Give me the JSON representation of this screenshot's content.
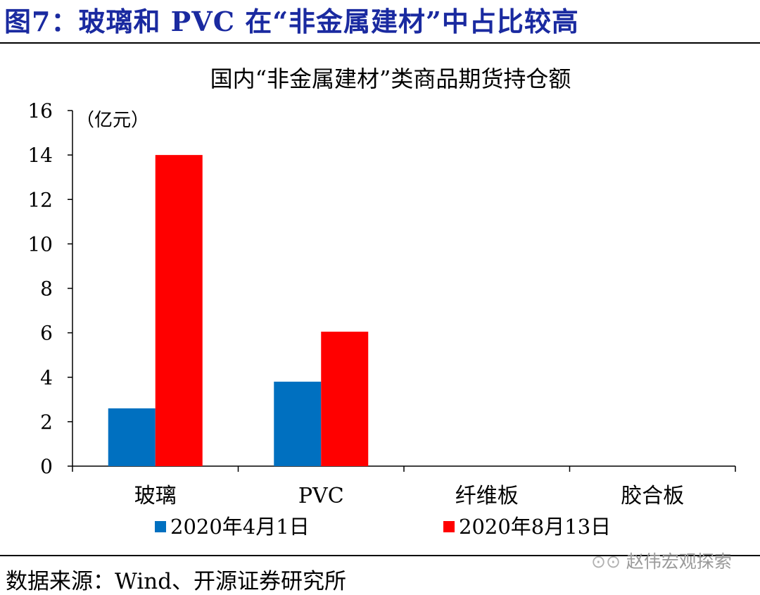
{
  "figure_title": "图7：玻璃和 PVC 在“非金属建材”中占比较高",
  "source": "数据来源：Wind、开源证券研究所",
  "watermark": "赵伟宏观探索",
  "chart_data": {
    "type": "bar",
    "title": "国内“非金属建材”类商品期货持仓额",
    "unit_label": "（亿元）",
    "categories": [
      "玻璃",
      "PVC",
      "纤维板",
      "胶合板"
    ],
    "series": [
      {
        "name": "2020年4月1日",
        "values": [
          2.6,
          3.8,
          0,
          0
        ],
        "color": "#0070c0"
      },
      {
        "name": "2020年8月13日",
        "values": [
          14.0,
          6.05,
          0,
          0
        ],
        "color": "#ff0000"
      }
    ],
    "ylim": [
      0,
      16
    ],
    "yticks": [
      0,
      2,
      4,
      6,
      8,
      10,
      12,
      14,
      16
    ],
    "grid": false,
    "legend_position": "bottom"
  }
}
